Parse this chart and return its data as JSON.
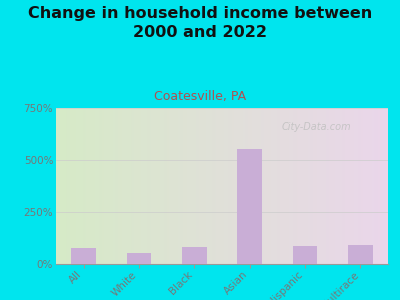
{
  "title": "Change in household income between\n2000 and 2022",
  "subtitle": "Coatesville, PA",
  "categories": [
    "All",
    "White",
    "Black",
    "Asian",
    "Hispanic",
    "Multirace"
  ],
  "values": [
    75,
    55,
    80,
    555,
    85,
    90
  ],
  "bar_color": "#c9aed6",
  "title_fontsize": 11.5,
  "subtitle_fontsize": 9,
  "subtitle_color": "#b05050",
  "background_outer": "#00e5ee",
  "ytick_color": "#777777",
  "xtick_color": "#777777",
  "ylim": [
    0,
    750
  ],
  "yticks": [
    0,
    250,
    500,
    750
  ],
  "ytick_labels": [
    "0%",
    "250%",
    "500%",
    "750%"
  ],
  "watermark": "City-Data.com",
  "watermark_color": "#c0c0c0",
  "plot_left": "#d4e8c8",
  "plot_right": "#e8d0e8"
}
